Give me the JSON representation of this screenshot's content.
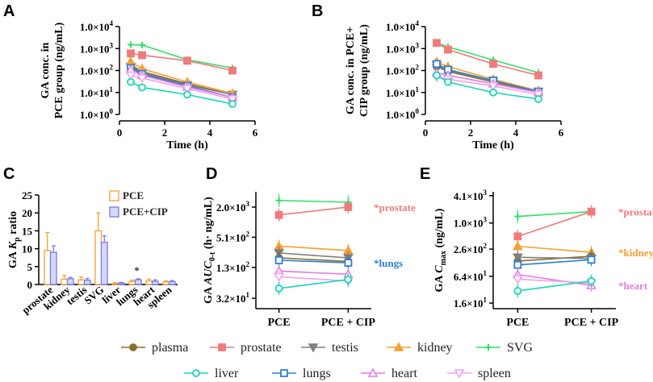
{
  "colors": {
    "plasma": "#8B6F2F",
    "prostate": "#F07B7B",
    "testis": "#7F7F7F",
    "kidney": "#F5A033",
    "SVG": "#33E06A",
    "liver": "#19D6B6",
    "lungs": "#2B7FD4",
    "heart": "#E07BE0",
    "spleen": "#F5A0F0",
    "pce_bar": "#F5A033",
    "pcecip_bar": "#7B7BE8"
  },
  "legend": {
    "row1": [
      "plasma",
      "prostate",
      "testis",
      "kidney",
      "SVG"
    ],
    "row2": [
      "liver",
      "lungs",
      "heart",
      "spleen"
    ]
  },
  "chart_data": [
    {
      "id": "A",
      "panel_label": "A",
      "type": "line",
      "xlabel": "Time (h)",
      "ylabel_lines": [
        "GA conc. in",
        "PCE group (ng/mL)"
      ],
      "yscale": "log",
      "ylim_exp": [
        0,
        4
      ],
      "ytick_base": "1.0×10",
      "ytick_exps": [
        "4",
        "3",
        "2",
        "1",
        "0"
      ],
      "xlim": [
        0,
        6
      ],
      "xticks": [
        "0",
        "2",
        "4",
        "6"
      ],
      "x": [
        0.5,
        1,
        3,
        5
      ],
      "series": [
        {
          "name": "SVG",
          "values": [
            1500,
            1450,
            310,
            130
          ]
        },
        {
          "name": "prostate",
          "values": [
            600,
            500,
            280,
            100
          ]
        },
        {
          "name": "plasma",
          "values": [
            180,
            90,
            25,
            8
          ]
        },
        {
          "name": "testis",
          "values": [
            150,
            80,
            22,
            8
          ]
        },
        {
          "name": "kidney",
          "values": [
            250,
            120,
            30,
            9
          ]
        },
        {
          "name": "lungs",
          "values": [
            130,
            70,
            20,
            6
          ]
        },
        {
          "name": "heart",
          "values": [
            110,
            60,
            18,
            6
          ]
        },
        {
          "name": "spleen",
          "values": [
            60,
            45,
            15,
            5
          ]
        },
        {
          "name": "liver",
          "values": [
            30,
            17,
            8,
            3
          ]
        }
      ]
    },
    {
      "id": "B",
      "panel_label": "B",
      "type": "line",
      "xlabel": "Time (h)",
      "ylabel_lines": [
        "GA conc. in PCE+",
        "CIP group (ng/mL)"
      ],
      "yscale": "log",
      "ylim_exp": [
        0,
        4
      ],
      "ytick_base": "1.0×10",
      "ytick_exps": [
        "4",
        "3",
        "2",
        "1",
        "0"
      ],
      "xlim": [
        0,
        6
      ],
      "xticks": [
        "0",
        "2",
        "4",
        "6"
      ],
      "x": [
        0.5,
        1,
        3,
        5
      ],
      "series": [
        {
          "name": "SVG",
          "values": [
            1800,
            1200,
            300,
            80
          ]
        },
        {
          "name": "prostate",
          "values": [
            1800,
            900,
            200,
            60
          ]
        },
        {
          "name": "plasma",
          "values": [
            150,
            90,
            30,
            10
          ]
        },
        {
          "name": "testis",
          "values": [
            180,
            100,
            35,
            11
          ]
        },
        {
          "name": "kidney",
          "values": [
            250,
            150,
            40,
            12
          ]
        },
        {
          "name": "lungs",
          "values": [
            200,
            110,
            35,
            11
          ]
        },
        {
          "name": "heart",
          "values": [
            80,
            60,
            25,
            10
          ]
        },
        {
          "name": "spleen",
          "values": [
            50,
            40,
            20,
            8
          ]
        },
        {
          "name": "liver",
          "values": [
            60,
            30,
            10,
            5
          ]
        }
      ]
    },
    {
      "id": "C",
      "panel_label": "C",
      "type": "bar",
      "ylabel": "GA Kp ratio",
      "ylabel_prefix": "GA ",
      "ylabel_k": "K",
      "ylabel_sub": "p",
      "ylabel_suffix": " ratio",
      "ylim": [
        0,
        25
      ],
      "yticks": [
        "0",
        "5",
        "10",
        "15",
        "20",
        "25"
      ],
      "categories": [
        "prostate",
        "kidney",
        "testis",
        "SVG",
        "liver",
        "lungs",
        "heart",
        "spleen"
      ],
      "series": [
        {
          "name": "PCE",
          "values": [
            9.5,
            1.5,
            1.3,
            15,
            0.3,
            0.8,
            1.0,
            0.7
          ],
          "errors": [
            5,
            1,
            0.8,
            5,
            0.2,
            0.4,
            0.5,
            0.3
          ]
        },
        {
          "name": "PCE+CIP",
          "values": [
            9,
            1.6,
            1.2,
            11.8,
            0.4,
            1.3,
            0.9,
            0.8
          ],
          "errors": [
            1.8,
            0.4,
            0.5,
            1.8,
            0.2,
            0.3,
            0.4,
            0.3
          ]
        }
      ],
      "legend": [
        "PCE",
        "PCE+CIP"
      ],
      "annotation": "*"
    },
    {
      "id": "D",
      "panel_label": "D",
      "type": "line",
      "ylabel_prefix": "GA ",
      "ylabel_main": "AUC",
      "ylabel_sub": "0-t",
      "ylabel_units": " (h· ng/mL)",
      "yscale": "log",
      "ytick_values": [
        32,
        130,
        510,
        2000
      ],
      "ytick_labels": [
        [
          "3.2×10",
          "1"
        ],
        [
          "1.3×10",
          "2"
        ],
        [
          "5.1×10",
          "2"
        ],
        [
          "2.0×10",
          "3"
        ]
      ],
      "ylim": [
        20,
        4000
      ],
      "categories": [
        "PCE",
        "PCE + CIP"
      ],
      "series": [
        {
          "name": "SVG",
          "values": [
            2700,
            2500
          ]
        },
        {
          "name": "prostate",
          "values": [
            1400,
            2000
          ]
        },
        {
          "name": "kidney",
          "values": [
            340,
            280
          ]
        },
        {
          "name": "testis",
          "values": [
            250,
            200
          ]
        },
        {
          "name": "plasma",
          "values": [
            200,
            170
          ]
        },
        {
          "name": "lungs",
          "values": [
            180,
            160
          ]
        },
        {
          "name": "heart",
          "values": [
            110,
            95
          ]
        },
        {
          "name": "spleen",
          "values": [
            85,
            70
          ]
        },
        {
          "name": "liver",
          "values": [
            50,
            75
          ]
        }
      ],
      "annotations": [
        {
          "text": "*prostate",
          "series": "prostate"
        },
        {
          "text": "*lungs",
          "series": "lungs"
        }
      ]
    },
    {
      "id": "E",
      "panel_label": "E",
      "type": "line",
      "ylabel_prefix": "GA ",
      "ylabel_main": "C",
      "ylabel_sub": "max",
      "ylabel_units": " (ng/mL)",
      "yscale": "log",
      "ytick_values": [
        16,
        64,
        260,
        1000,
        4100
      ],
      "ytick_labels": [
        [
          "1.6×10",
          "1"
        ],
        [
          "6.4×10",
          "1"
        ],
        [
          "2.6×10",
          "2"
        ],
        [
          "1.0×10",
          "3"
        ],
        [
          "4.1×10",
          "3"
        ]
      ],
      "ylim": [
        12,
        5000
      ],
      "categories": [
        "PCE",
        "PCE + CIP"
      ],
      "series": [
        {
          "name": "SVG",
          "values": [
            1400,
            1800
          ]
        },
        {
          "name": "prostate",
          "values": [
            500,
            1800
          ]
        },
        {
          "name": "kidney",
          "values": [
            300,
            220
          ]
        },
        {
          "name": "plasma",
          "values": [
            140,
            180
          ]
        },
        {
          "name": "testis",
          "values": [
            170,
            160
          ]
        },
        {
          "name": "lungs",
          "values": [
            115,
            150
          ]
        },
        {
          "name": "heart",
          "values": [
            70,
            40
          ]
        },
        {
          "name": "spleen",
          "values": [
            55,
            45
          ]
        },
        {
          "name": "liver",
          "values": [
            30,
            50
          ]
        }
      ],
      "annotations": [
        {
          "text": "*prostate",
          "series": "prostate"
        },
        {
          "text": "*kidney",
          "series": "kidney"
        },
        {
          "text": "*heart",
          "series": "heart"
        }
      ]
    }
  ]
}
